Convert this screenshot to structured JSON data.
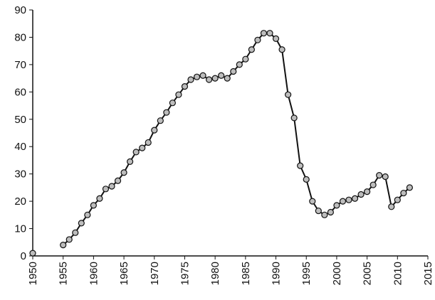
{
  "chart_data": {
    "type": "line",
    "x": [
      1950,
      1951,
      1952,
      1953,
      1954,
      1955,
      1956,
      1957,
      1958,
      1959,
      1960,
      1961,
      1962,
      1963,
      1964,
      1965,
      1966,
      1967,
      1968,
      1969,
      1970,
      1971,
      1972,
      1973,
      1974,
      1975,
      1976,
      1977,
      1978,
      1979,
      1980,
      1981,
      1982,
      1983,
      1984,
      1985,
      1986,
      1987,
      1988,
      1989,
      1990,
      1991,
      1992,
      1993,
      1994,
      1995,
      1996,
      1997,
      1998,
      1999,
      2000,
      2001,
      2002,
      2003,
      2004,
      2005,
      2006,
      2007,
      2008,
      2009,
      2010,
      2011,
      2012
    ],
    "values": [
      1,
      null,
      null,
      null,
      null,
      4,
      6,
      8.5,
      12,
      15,
      18.5,
      21,
      24.5,
      25.5,
      27.5,
      30.5,
      34.5,
      38,
      39.5,
      41.5,
      46,
      49.5,
      52.5,
      56,
      59,
      62,
      64.5,
      65.5,
      66,
      64.5,
      65,
      66,
      65,
      67.5,
      70,
      72,
      75.5,
      79,
      81.5,
      81.5,
      79.5,
      75.5,
      59,
      50.5,
      33,
      28,
      20,
      16.5,
      15,
      16,
      18.5,
      20,
      20.5,
      21,
      22.5,
      23.5,
      26,
      29.5,
      29,
      18,
      20.5,
      23,
      25
    ],
    "color": "#111111",
    "marker_fill": "#bdbdbd",
    "xlim": [
      1950,
      2015
    ],
    "xticks": [
      1950,
      1955,
      1960,
      1965,
      1970,
      1975,
      1980,
      1985,
      1990,
      1995,
      2000,
      2005,
      2010,
      2015
    ],
    "ylim": [
      0,
      90
    ],
    "yticks": [
      0,
      10,
      20,
      30,
      40,
      50,
      60,
      70,
      80,
      90
    ],
    "grid": false
  }
}
